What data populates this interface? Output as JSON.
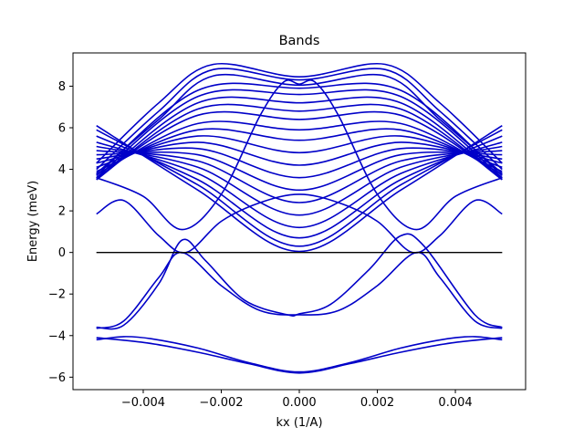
{
  "chart_data": {
    "type": "line",
    "title": "Bands",
    "xlabel": "kx (1/A)",
    "ylabel": "Energy (meV)",
    "xlim": [
      -0.0058,
      0.0058
    ],
    "ylim": [
      -6.6,
      9.6
    ],
    "xticks": [
      -0.004,
      -0.002,
      0.0,
      0.002,
      0.004
    ],
    "xtick_labels": [
      "−0.004",
      "−0.002",
      "0.000",
      "0.002",
      "0.004"
    ],
    "yticks": [
      -6,
      -4,
      -2,
      0,
      2,
      4,
      6,
      8
    ],
    "ytick_labels": [
      "−6",
      "−4",
      "−2",
      "0",
      "2",
      "4",
      "6",
      "8"
    ],
    "grid": false,
    "line_color": "#0000c8",
    "reference_line": {
      "y": 0,
      "x_range": [
        -0.0052,
        0.0052
      ],
      "color": "#000000"
    },
    "series": [
      {
        "x": [
          -0.0052,
          -0.0039,
          -0.0026,
          -0.0013,
          0.0,
          0.0013,
          0.0026,
          0.0039,
          0.0052
        ],
        "y": [
          -4.1,
          -4.35,
          -4.8,
          -5.35,
          -5.8,
          -5.35,
          -4.8,
          -4.35,
          -4.1
        ]
      },
      {
        "x": [
          -0.0052,
          -0.0045,
          -0.0038,
          -0.0026,
          -0.0013,
          0.0,
          0.0013,
          0.0026,
          0.0038,
          0.0045,
          0.0052
        ],
        "y": [
          -4.2,
          -4.05,
          -4.15,
          -4.6,
          -5.3,
          -5.75,
          -5.3,
          -4.6,
          -4.15,
          -4.05,
          -4.2
        ]
      },
      {
        "x": [
          -0.0052,
          -0.0045,
          -0.0036,
          -0.003,
          -0.002,
          -0.001,
          0.0,
          0.001,
          0.002,
          0.003,
          0.0036,
          0.0045,
          0.0052
        ],
        "y": [
          -3.65,
          -3.3,
          -1.2,
          0.0,
          -1.6,
          -2.8,
          -3.0,
          -2.8,
          -1.6,
          0.0,
          -1.2,
          -3.3,
          -3.65
        ]
      },
      {
        "x": [
          -0.0052,
          -0.0045,
          -0.0036,
          -0.003,
          -0.0024,
          -0.0014,
          -0.0003,
          0.0,
          0.0008,
          0.0018,
          0.0026,
          0.0032,
          0.0045,
          0.0052
        ],
        "y": [
          -3.6,
          -3.5,
          -1.5,
          0.6,
          -0.4,
          -2.3,
          -3.0,
          -2.95,
          -2.5,
          -0.8,
          0.8,
          0.3,
          -3.0,
          -3.6
        ]
      },
      {
        "x": [
          -0.0052,
          -0.0045,
          -0.0036,
          -0.0029,
          -0.002,
          -0.001,
          0.0,
          0.001,
          0.002,
          0.0029,
          0.0036,
          0.0045,
          0.0052
        ],
        "y": [
          1.85,
          2.5,
          0.8,
          0.0,
          1.5,
          2.4,
          2.8,
          2.4,
          1.5,
          0.0,
          0.8,
          2.5,
          1.85
        ]
      },
      {
        "x": [
          -0.0052,
          -0.004,
          -0.003,
          -0.002,
          -0.001,
          -0.0004,
          0.0,
          0.0004,
          0.001,
          0.002,
          0.003,
          0.004,
          0.0052
        ],
        "y": [
          3.6,
          2.7,
          1.1,
          2.8,
          6.6,
          8.2,
          8.1,
          8.2,
          6.6,
          2.8,
          1.1,
          2.7,
          3.6
        ]
      },
      {
        "x": [
          -0.0052,
          -0.0026,
          0.0,
          0.0026,
          0.0052
        ],
        "y": [
          6.1,
          3.0,
          0.05,
          3.0,
          6.1
        ]
      },
      {
        "x": [
          -0.0052,
          -0.0026,
          0.0,
          0.0026,
          0.0052
        ],
        "y": [
          5.9,
          3.25,
          0.3,
          3.25,
          5.9
        ]
      },
      {
        "x": [
          -0.0052,
          -0.0026,
          0.0,
          0.0026,
          0.0052
        ],
        "y": [
          5.6,
          3.5,
          0.7,
          3.5,
          5.6
        ]
      },
      {
        "x": [
          -0.0052,
          -0.0026,
          0.0,
          0.0026,
          0.0052
        ],
        "y": [
          5.3,
          3.8,
          1.2,
          3.8,
          5.3
        ]
      },
      {
        "x": [
          -0.0052,
          -0.0026,
          0.0,
          0.0026,
          0.0052
        ],
        "y": [
          5.1,
          4.1,
          1.8,
          4.1,
          5.1
        ]
      },
      {
        "x": [
          -0.0052,
          -0.0026,
          0.0,
          0.0026,
          0.0052
        ],
        "y": [
          4.9,
          4.4,
          2.4,
          4.4,
          4.9
        ]
      },
      {
        "x": [
          -0.0052,
          -0.0026,
          0.0,
          0.0026,
          0.0052
        ],
        "y": [
          4.7,
          4.7,
          3.0,
          4.7,
          4.7
        ]
      },
      {
        "x": [
          -0.0052,
          -0.0026,
          0.0,
          0.0026,
          0.0052
        ],
        "y": [
          4.5,
          5.0,
          3.6,
          5.0,
          4.5
        ]
      },
      {
        "x": [
          -0.0052,
          -0.0026,
          0.0,
          0.0026,
          0.0052
        ],
        "y": [
          4.3,
          5.3,
          4.2,
          5.3,
          4.3
        ]
      },
      {
        "x": [
          -0.0052,
          -0.0026,
          0.0,
          0.0026,
          0.0052
        ],
        "y": [
          4.1,
          5.6,
          4.8,
          5.6,
          4.1
        ]
      },
      {
        "x": [
          -0.0052,
          -0.0026,
          0.0,
          0.0026,
          0.0052
        ],
        "y": [
          3.9,
          5.9,
          5.4,
          5.9,
          3.9
        ]
      },
      {
        "x": [
          -0.0052,
          -0.0026,
          0.0,
          0.0026,
          0.0052
        ],
        "y": [
          3.75,
          6.2,
          5.9,
          6.2,
          3.75
        ]
      },
      {
        "x": [
          -0.0052,
          -0.0026,
          0.0,
          0.0026,
          0.0052
        ],
        "y": [
          3.6,
          6.6,
          6.4,
          6.6,
          3.6
        ]
      },
      {
        "x": [
          -0.0052,
          -0.0026,
          0.0,
          0.0026,
          0.0052
        ],
        "y": [
          3.5,
          6.9,
          6.8,
          6.9,
          3.5
        ]
      },
      {
        "x": [
          -0.0052,
          -0.0026,
          0.0,
          0.0026,
          0.0052
        ],
        "y": [
          3.5,
          7.2,
          7.2,
          7.2,
          3.5
        ]
      },
      {
        "x": [
          -0.0052,
          -0.0026,
          0.0,
          0.0026,
          0.0052
        ],
        "y": [
          3.6,
          7.5,
          7.6,
          7.5,
          3.6
        ]
      },
      {
        "x": [
          -0.0052,
          -0.0026,
          0.0,
          0.0026,
          0.0052
        ],
        "y": [
          3.7,
          7.8,
          7.9,
          7.8,
          3.7
        ]
      },
      {
        "x": [
          -0.0052,
          -0.0036,
          -0.0022,
          0.0,
          0.0022,
          0.0036,
          0.0052
        ],
        "y": [
          3.8,
          6.4,
          8.5,
          8.05,
          8.5,
          6.4,
          3.8
        ]
      },
      {
        "x": [
          -0.0052,
          -0.0036,
          -0.0022,
          0.0,
          0.0022,
          0.0036,
          0.0052
        ],
        "y": [
          4.0,
          6.8,
          8.8,
          8.3,
          8.8,
          6.8,
          4.0
        ]
      },
      {
        "x": [
          -0.0052,
          -0.0036,
          -0.0022,
          0.0,
          0.0022,
          0.0036,
          0.0052
        ],
        "y": [
          4.3,
          7.2,
          9.05,
          8.45,
          9.05,
          7.2,
          4.3
        ]
      }
    ]
  }
}
